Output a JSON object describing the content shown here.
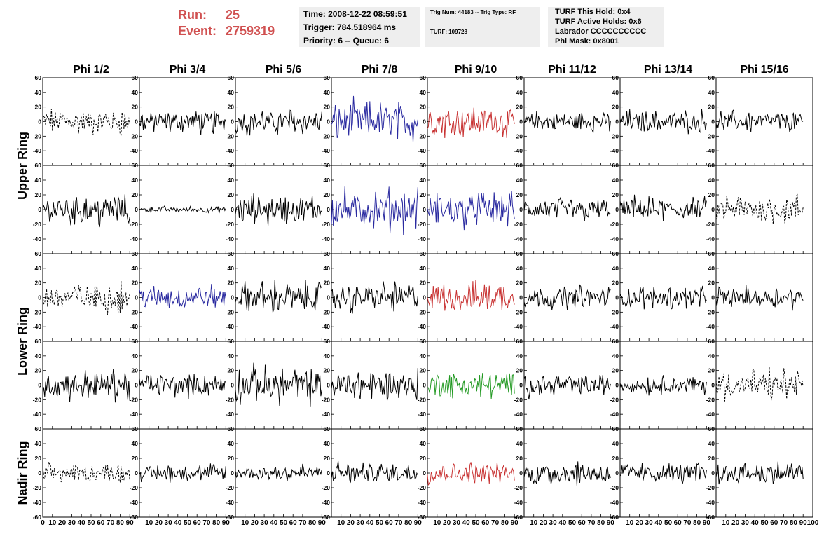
{
  "header": {
    "run_label": "Run:",
    "run_value": "25",
    "event_label": "Event:",
    "event_value": "2759319",
    "time_line": "Time: 2008-12-22 08:59:51",
    "trigger_line": "Trigger: 784.518964 ms",
    "priority_line": "Priority: 6 -- Queue: 6",
    "trig_line": "Trig Num: 44183 -- Trig Type: RF",
    "turf_line": "TURF: 109728",
    "turf_hold_line": "TURF This Hold: 0x4",
    "turf_active_line": "TURF Active Holds: 0x6",
    "labrador_line": "Labrador CCCCCCCCCC",
    "phi_mask_line": "Phi Mask: 0x8001"
  },
  "chart_data": {
    "type": "line",
    "columns": [
      "Phi 1/2",
      "Phi 3/4",
      "Phi 5/6",
      "Phi 7/8",
      "Phi 9/10",
      "Phi 11/12",
      "Phi 13/14",
      "Phi 15/16"
    ],
    "rows": [
      "Upper Ring",
      "Upper Ring",
      "Lower Ring",
      "Lower Ring",
      "Nadir Ring"
    ],
    "row_titles": [
      {
        "label": "Upper Ring",
        "rows": [
          0,
          1
        ]
      },
      {
        "label": "Lower Ring",
        "rows": [
          2,
          3
        ]
      },
      {
        "label": "Nadir Ring",
        "rows": [
          4
        ]
      }
    ],
    "xlim": [
      0,
      100
    ],
    "ylim": [
      -60,
      60
    ],
    "x_ticks": [
      0,
      10,
      20,
      30,
      40,
      50,
      60,
      70,
      80,
      90,
      100
    ],
    "y_ticks": [
      -60,
      -40,
      -20,
      0,
      20,
      40,
      60
    ],
    "samples_per_trace": 90,
    "colors": {
      "normal": "#000000",
      "blue": "#2a2aa0",
      "red": "#c83232",
      "green": "#229922"
    },
    "panels": [
      [
        {
          "style": "dashed",
          "color": "normal",
          "amplitude": 18
        },
        {
          "style": "solid",
          "color": "normal",
          "amplitude": 16
        },
        {
          "style": "solid",
          "color": "normal",
          "amplitude": 17
        },
        {
          "style": "solid",
          "color": "blue",
          "amplitude": 26
        },
        {
          "style": "solid",
          "color": "red",
          "amplitude": 22
        },
        {
          "style": "solid",
          "color": "normal",
          "amplitude": 14
        },
        {
          "style": "solid",
          "color": "normal",
          "amplitude": 15
        },
        {
          "style": "solid",
          "color": "normal",
          "amplitude": 14
        }
      ],
      [
        {
          "style": "solid",
          "color": "normal",
          "amplitude": 22
        },
        {
          "style": "solid",
          "color": "normal",
          "amplitude": 4
        },
        {
          "style": "solid",
          "color": "normal",
          "amplitude": 20
        },
        {
          "style": "solid",
          "color": "blue",
          "amplitude": 26
        },
        {
          "style": "solid",
          "color": "blue",
          "amplitude": 24
        },
        {
          "style": "solid",
          "color": "normal",
          "amplitude": 16
        },
        {
          "style": "solid",
          "color": "normal",
          "amplitude": 16
        },
        {
          "style": "dashed",
          "color": "normal",
          "amplitude": 20
        }
      ],
      [
        {
          "style": "dashed",
          "color": "normal",
          "amplitude": 20
        },
        {
          "style": "solid",
          "color": "blue",
          "amplitude": 16
        },
        {
          "style": "solid",
          "color": "normal",
          "amplitude": 20
        },
        {
          "style": "solid",
          "color": "normal",
          "amplitude": 20
        },
        {
          "style": "solid",
          "color": "red",
          "amplitude": 22
        },
        {
          "style": "solid",
          "color": "normal",
          "amplitude": 15
        },
        {
          "style": "solid",
          "color": "normal",
          "amplitude": 15
        },
        {
          "style": "solid",
          "color": "normal",
          "amplitude": 14
        }
      ],
      [
        {
          "style": "solid",
          "color": "normal",
          "amplitude": 20
        },
        {
          "style": "solid",
          "color": "normal",
          "amplitude": 16
        },
        {
          "style": "solid",
          "color": "normal",
          "amplitude": 24
        },
        {
          "style": "solid",
          "color": "normal",
          "amplitude": 22
        },
        {
          "style": "solid",
          "color": "green",
          "amplitude": 18
        },
        {
          "style": "solid",
          "color": "normal",
          "amplitude": 15
        },
        {
          "style": "solid",
          "color": "normal",
          "amplitude": 12
        },
        {
          "style": "dashed",
          "color": "normal",
          "amplitude": 20
        }
      ],
      [
        {
          "style": "dashed",
          "color": "normal",
          "amplitude": 12
        },
        {
          "style": "solid",
          "color": "normal",
          "amplitude": 12
        },
        {
          "style": "solid",
          "color": "normal",
          "amplitude": 12
        },
        {
          "style": "solid",
          "color": "normal",
          "amplitude": 14
        },
        {
          "style": "solid",
          "color": "red",
          "amplitude": 14
        },
        {
          "style": "solid",
          "color": "normal",
          "amplitude": 16
        },
        {
          "style": "solid",
          "color": "normal",
          "amplitude": 14
        },
        {
          "style": "solid",
          "color": "normal",
          "amplitude": 16
        }
      ]
    ]
  }
}
